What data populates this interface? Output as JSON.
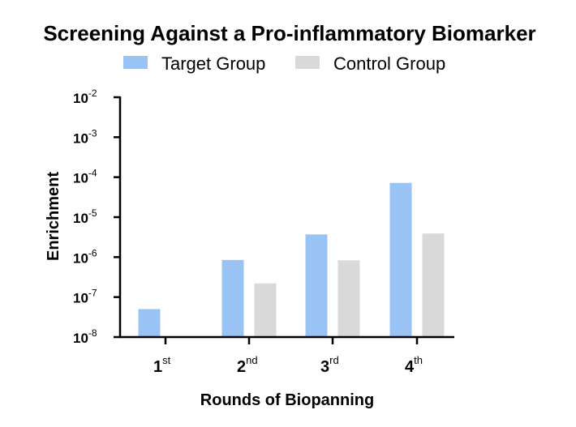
{
  "chart_data": {
    "type": "bar",
    "title": "Screening Against a Pro-inflammatory Biomarker",
    "xlabel": "Rounds of Biopanning",
    "ylabel": "Enrichment",
    "yscale": "log",
    "ylim": [
      1e-08,
      0.01
    ],
    "y_ticks": [
      {
        "base": "10",
        "exp": "-2",
        "value": 0.01
      },
      {
        "base": "10",
        "exp": "-3",
        "value": 0.001
      },
      {
        "base": "10",
        "exp": "-4",
        "value": 0.0001
      },
      {
        "base": "10",
        "exp": "-5",
        "value": 1e-05
      },
      {
        "base": "10",
        "exp": "-6",
        "value": 1e-06
      },
      {
        "base": "10",
        "exp": "-7",
        "value": 1e-07
      },
      {
        "base": "10",
        "exp": "-8",
        "value": 1e-08
      }
    ],
    "categories": [
      {
        "main": "1",
        "sup": "st"
      },
      {
        "main": "2",
        "sup": "nd"
      },
      {
        "main": "3",
        "sup": "rd"
      },
      {
        "main": "4",
        "sup": "th"
      }
    ],
    "series": [
      {
        "name": "Target Group",
        "color": "#99c3f5",
        "values": [
          5e-08,
          8.5e-07,
          3.7e-06,
          7.2e-05
        ]
      },
      {
        "name": "Control Group",
        "color": "#d9d9d9",
        "values": [
          null,
          2.2e-07,
          8.3e-07,
          3.9e-06
        ]
      }
    ],
    "legend_position": "top",
    "grid": false
  }
}
